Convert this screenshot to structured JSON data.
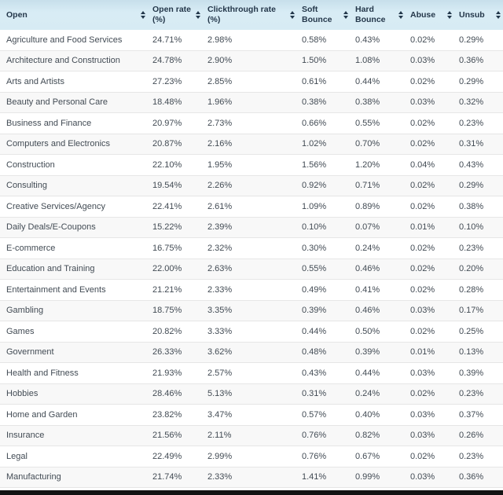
{
  "table": {
    "columns": [
      {
        "label": "Open"
      },
      {
        "label": "Open rate (%)"
      },
      {
        "label": "Clickthrough rate (%)"
      },
      {
        "label": "Soft Bounce"
      },
      {
        "label": "Hard Bounce"
      },
      {
        "label": "Abuse"
      },
      {
        "label": "Unsub"
      }
    ],
    "rows": [
      [
        "Agriculture and Food Services",
        "24.71%",
        "2.98%",
        "0.58%",
        "0.43%",
        "0.02%",
        "0.29%"
      ],
      [
        "Architecture and Construction",
        "24.78%",
        "2.90%",
        "1.50%",
        "1.08%",
        "0.03%",
        "0.36%"
      ],
      [
        "Arts and Artists",
        "27.23%",
        "2.85%",
        "0.61%",
        "0.44%",
        "0.02%",
        "0.29%"
      ],
      [
        "Beauty and Personal Care",
        "18.48%",
        "1.96%",
        "0.38%",
        "0.38%",
        "0.03%",
        "0.32%"
      ],
      [
        "Business and Finance",
        "20.97%",
        "2.73%",
        "0.66%",
        "0.55%",
        "0.02%",
        "0.23%"
      ],
      [
        "Computers and Electronics",
        "20.87%",
        "2.16%",
        "1.02%",
        "0.70%",
        "0.02%",
        "0.31%"
      ],
      [
        "Construction",
        "22.10%",
        "1.95%",
        "1.56%",
        "1.20%",
        "0.04%",
        "0.43%"
      ],
      [
        "Consulting",
        "19.54%",
        "2.26%",
        "0.92%",
        "0.71%",
        "0.02%",
        "0.29%"
      ],
      [
        "Creative Services/Agency",
        "22.41%",
        "2.61%",
        "1.09%",
        "0.89%",
        "0.02%",
        "0.38%"
      ],
      [
        "Daily Deals/E-Coupons",
        "15.22%",
        "2.39%",
        "0.10%",
        "0.07%",
        "0.01%",
        "0.10%"
      ],
      [
        "E-commerce",
        "16.75%",
        "2.32%",
        "0.30%",
        "0.24%",
        "0.02%",
        "0.23%"
      ],
      [
        "Education and Training",
        "22.00%",
        "2.63%",
        "0.55%",
        "0.46%",
        "0.02%",
        "0.20%"
      ],
      [
        "Entertainment and Events",
        "21.21%",
        "2.33%",
        "0.49%",
        "0.41%",
        "0.02%",
        "0.28%"
      ],
      [
        "Gambling",
        "18.75%",
        "3.35%",
        "0.39%",
        "0.46%",
        "0.03%",
        "0.17%"
      ],
      [
        "Games",
        "20.82%",
        "3.33%",
        "0.44%",
        "0.50%",
        "0.02%",
        "0.25%"
      ],
      [
        "Government",
        "26.33%",
        "3.62%",
        "0.48%",
        "0.39%",
        "0.01%",
        "0.13%"
      ],
      [
        "Health and Fitness",
        "21.93%",
        "2.57%",
        "0.43%",
        "0.44%",
        "0.03%",
        "0.39%"
      ],
      [
        "Hobbies",
        "28.46%",
        "5.13%",
        "0.31%",
        "0.24%",
        "0.02%",
        "0.23%"
      ],
      [
        "Home and Garden",
        "23.82%",
        "3.47%",
        "0.57%",
        "0.40%",
        "0.03%",
        "0.37%"
      ],
      [
        "Insurance",
        "21.56%",
        "2.11%",
        "0.76%",
        "0.82%",
        "0.03%",
        "0.26%"
      ],
      [
        "Legal",
        "22.49%",
        "2.99%",
        "0.76%",
        "0.67%",
        "0.02%",
        "0.23%"
      ],
      [
        "Manufacturing",
        "21.74%",
        "2.33%",
        "1.41%",
        "0.99%",
        "0.03%",
        "0.36%"
      ]
    ]
  },
  "colors": {
    "header_background": "#d8ecf5",
    "header_text": "#24374a",
    "body_text": "#424b54",
    "row_stripe": "#f8f8f8",
    "row_border": "#e6e6e6",
    "bottom_bar": "#121212"
  }
}
